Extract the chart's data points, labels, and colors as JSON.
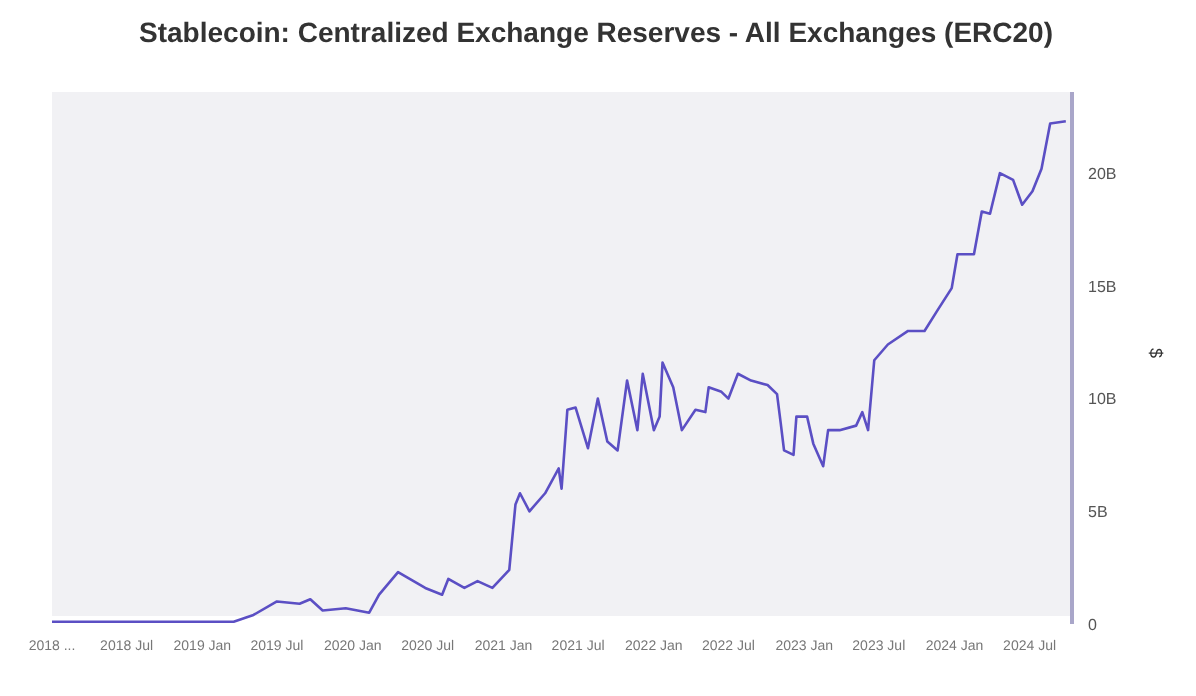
{
  "chart_data": {
    "type": "line",
    "title": "Stablecoin: Centralized Exchange Reserves - All Exchanges (ERC20)",
    "ylabel": "$",
    "x": [
      "2018-01-01",
      "2018-07-01",
      "2019-01-01",
      "2019-03-18",
      "2019-05-05",
      "2019-07-01",
      "2019-08-25",
      "2019-09-20",
      "2019-10-20",
      "2019-12-15",
      "2020-02-10",
      "2020-03-05",
      "2020-04-20",
      "2020-06-25",
      "2020-08-05",
      "2020-08-20",
      "2020-09-28",
      "2020-10-30",
      "2020-12-05",
      "2021-01-15",
      "2021-01-30",
      "2021-02-10",
      "2021-03-05",
      "2021-04-12",
      "2021-05-15",
      "2021-05-22",
      "2021-06-05",
      "2021-06-25",
      "2021-07-25",
      "2021-08-18",
      "2021-09-10",
      "2021-10-05",
      "2021-10-28",
      "2021-11-22",
      "2021-12-05",
      "2022-01-01",
      "2022-01-15",
      "2022-01-22",
      "2022-02-17",
      "2022-03-10",
      "2022-04-12",
      "2022-05-06",
      "2022-05-14",
      "2022-06-14",
      "2022-07-01",
      "2022-07-24",
      "2022-08-25",
      "2022-10-04",
      "2022-10-27",
      "2022-11-05",
      "2022-11-13",
      "2022-12-06",
      "2022-12-13",
      "2023-01-08",
      "2023-01-23",
      "2023-02-16",
      "2023-02-28",
      "2023-03-28",
      "2023-05-07",
      "2023-05-22",
      "2023-06-05",
      "2023-06-20",
      "2023-07-23",
      "2023-09-10",
      "2023-10-20",
      "2023-11-20",
      "2023-12-25",
      "2024-01-08",
      "2024-02-17",
      "2024-03-07",
      "2024-03-27",
      "2024-04-20",
      "2024-05-22",
      "2024-06-13",
      "2024-07-08",
      "2024-07-30",
      "2024-08-20",
      "2024-09-27"
    ],
    "series": [
      {
        "color": "#5b4fc4",
        "values": [
          0.1,
          0.1,
          0.1,
          0.1,
          0.4,
          1.0,
          0.9,
          1.1,
          0.6,
          0.7,
          0.5,
          1.3,
          2.3,
          1.6,
          1.3,
          2.0,
          1.6,
          1.9,
          1.6,
          2.4,
          5.3,
          5.8,
          5.0,
          5.8,
          6.9,
          6.0,
          9.5,
          9.6,
          7.8,
          10.0,
          8.1,
          7.7,
          10.8,
          8.6,
          11.1,
          8.6,
          9.2,
          11.6,
          10.5,
          8.6,
          9.5,
          9.4,
          10.5,
          10.3,
          10.0,
          11.1,
          10.8,
          10.6,
          10.2,
          8.9,
          7.7,
          7.5,
          9.2,
          9.2,
          8.0,
          7.0,
          8.6,
          8.6,
          8.8,
          9.4,
          8.6,
          11.7,
          12.4,
          13.0,
          13.0,
          13.9,
          14.9,
          16.4,
          16.4,
          18.3,
          18.2,
          20.0,
          19.7,
          18.6,
          19.2,
          20.2,
          22.2,
          22.3
        ]
      }
    ],
    "xlim": [
      "2018-01-01",
      "2024-10-12"
    ],
    "xticks": [
      {
        "value": "2018-01-01",
        "label": "2018 ..."
      },
      {
        "value": "2018-07-01",
        "label": "2018 Jul"
      },
      {
        "value": "2019-01-01",
        "label": "2019 Jan"
      },
      {
        "value": "2019-07-01",
        "label": "2019 Jul"
      },
      {
        "value": "2020-01-01",
        "label": "2020 Jan"
      },
      {
        "value": "2020-07-01",
        "label": "2020 Jul"
      },
      {
        "value": "2021-01-01",
        "label": "2021 Jan"
      },
      {
        "value": "2021-07-01",
        "label": "2021 Jul"
      },
      {
        "value": "2022-01-01",
        "label": "2022 Jan"
      },
      {
        "value": "2022-07-01",
        "label": "2022 Jul"
      },
      {
        "value": "2023-01-01",
        "label": "2023 Jan"
      },
      {
        "value": "2023-07-01",
        "label": "2023 Jul"
      },
      {
        "value": "2024-01-01",
        "label": "2024 Jan"
      },
      {
        "value": "2024-07-01",
        "label": "2024 Jul"
      }
    ],
    "ylim": [
      0,
      23.6
    ],
    "yticks": [
      0,
      {
        "value": 5,
        "label": "5B"
      },
      {
        "value": 10,
        "label": "10B"
      },
      {
        "value": 15,
        "label": "15B"
      },
      {
        "value": 20,
        "label": "20B"
      }
    ],
    "grid": false,
    "legend": false,
    "marker": "none",
    "line_style": "solid"
  }
}
